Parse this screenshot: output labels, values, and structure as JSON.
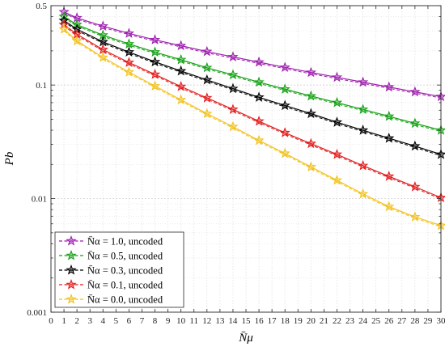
{
  "chart_data": {
    "type": "line",
    "xlabel": "N̄μ",
    "ylabel": "Pb",
    "xlim": [
      0,
      30
    ],
    "ylim": [
      0.001,
      0.5
    ],
    "yscale": "log",
    "grid": true,
    "legend_position": "bottom-left",
    "x_ticks": [
      0,
      1,
      2,
      3,
      4,
      5,
      6,
      7,
      8,
      9,
      10,
      11,
      12,
      13,
      14,
      15,
      16,
      17,
      18,
      19,
      20,
      21,
      22,
      23,
      24,
      25,
      26,
      27,
      28,
      29,
      30
    ],
    "y_ticks": [
      {
        "value": 0.001,
        "label": "0.001"
      },
      {
        "value": 0.01,
        "label": "0.01"
      },
      {
        "value": 0.1,
        "label": "0.1"
      },
      {
        "value": 0.5,
        "label": "0.5"
      }
    ],
    "marker_x": [
      1,
      2,
      4,
      6,
      8,
      10,
      12,
      14,
      16,
      18,
      20,
      22,
      24,
      26,
      28,
      30
    ],
    "series": [
      {
        "name": "N̄α = 1.0, uncoded",
        "color": "#9d1fae",
        "values": [
          0.44,
          0.39,
          0.33,
          0.285,
          0.25,
          0.222,
          0.197,
          0.177,
          0.159,
          0.143,
          0.129,
          0.117,
          0.106,
          0.096,
          0.087,
          0.079
        ]
      },
      {
        "name": "N̄α = 0.5, uncoded",
        "color": "#14a114",
        "values": [
          0.4,
          0.34,
          0.275,
          0.23,
          0.195,
          0.167,
          0.142,
          0.123,
          0.106,
          0.092,
          0.08,
          0.07,
          0.061,
          0.053,
          0.046,
          0.04
        ]
      },
      {
        "name": "N̄α = 0.3, uncoded",
        "color": "#000000",
        "values": [
          0.37,
          0.31,
          0.24,
          0.195,
          0.16,
          0.133,
          0.111,
          0.093,
          0.078,
          0.066,
          0.056,
          0.047,
          0.04,
          0.034,
          0.029,
          0.0245
        ]
      },
      {
        "name": "N̄α = 0.1, uncoded",
        "color": "#e31b1b",
        "values": [
          0.34,
          0.28,
          0.205,
          0.158,
          0.124,
          0.097,
          0.077,
          0.061,
          0.048,
          0.038,
          0.0305,
          0.0245,
          0.0195,
          0.0157,
          0.0127,
          0.0102
        ]
      },
      {
        "name": "N̄α = 0.0, uncoded",
        "color": "#f2c21b",
        "values": [
          0.31,
          0.245,
          0.175,
          0.13,
          0.098,
          0.074,
          0.056,
          0.043,
          0.0325,
          0.025,
          0.019,
          0.0145,
          0.011,
          0.0085,
          0.0069,
          0.0058
        ]
      }
    ]
  }
}
